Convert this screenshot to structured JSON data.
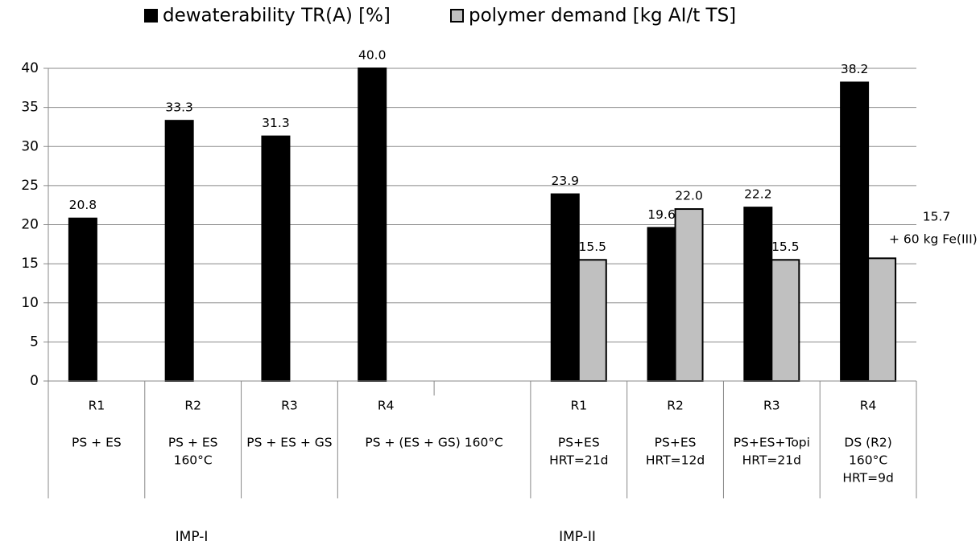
{
  "chart_data": {
    "type": "bar",
    "ylim": [
      0,
      40
    ],
    "yticks": [
      0,
      5,
      10,
      15,
      20,
      25,
      30,
      35,
      40
    ],
    "grid": true,
    "legend": "top",
    "categories": [
      "R1",
      "R2",
      "R3",
      "R4",
      null,
      "R1",
      "R2",
      "R3",
      "R4"
    ],
    "descriptions": [
      [
        "PS + ES"
      ],
      [
        "PS + ES",
        "160°C"
      ],
      [
        "PS + ES + GS"
      ],
      [
        "PS + (ES + GS) 160°C"
      ],
      null,
      [
        "PS+ES",
        "HRT=21d"
      ],
      [
        "PS+ES",
        "HRT=12d"
      ],
      [
        "PS+ES+Topi",
        "HRT=21d"
      ],
      [
        "DS (R2)",
        "160°C",
        "HRT=9d"
      ]
    ],
    "groups": [
      "IMP-I",
      null,
      null,
      null,
      null,
      "IMP-II",
      null,
      null,
      null
    ],
    "series": [
      {
        "name": "dewaterability TR(A) [%]",
        "color": "#000000",
        "values": [
          20.8,
          33.3,
          31.3,
          40.0,
          null,
          23.9,
          19.6,
          22.2,
          38.2
        ],
        "value_labels": [
          "20.8",
          "33.3",
          "31.3",
          "40.0",
          null,
          "23.9",
          "19.6",
          "22.2",
          "38.2"
        ]
      },
      {
        "name": "polymer demand [kg AI/t TS]",
        "color": "#c0c0c0",
        "values": [
          null,
          null,
          null,
          null,
          null,
          15.5,
          22.0,
          15.5,
          15.7
        ],
        "value_labels": [
          null,
          null,
          null,
          null,
          null,
          "15.5",
          "22.0",
          "15.5",
          "15.7"
        ]
      }
    ],
    "annotation": "+ 60 kg Fe(III)"
  }
}
